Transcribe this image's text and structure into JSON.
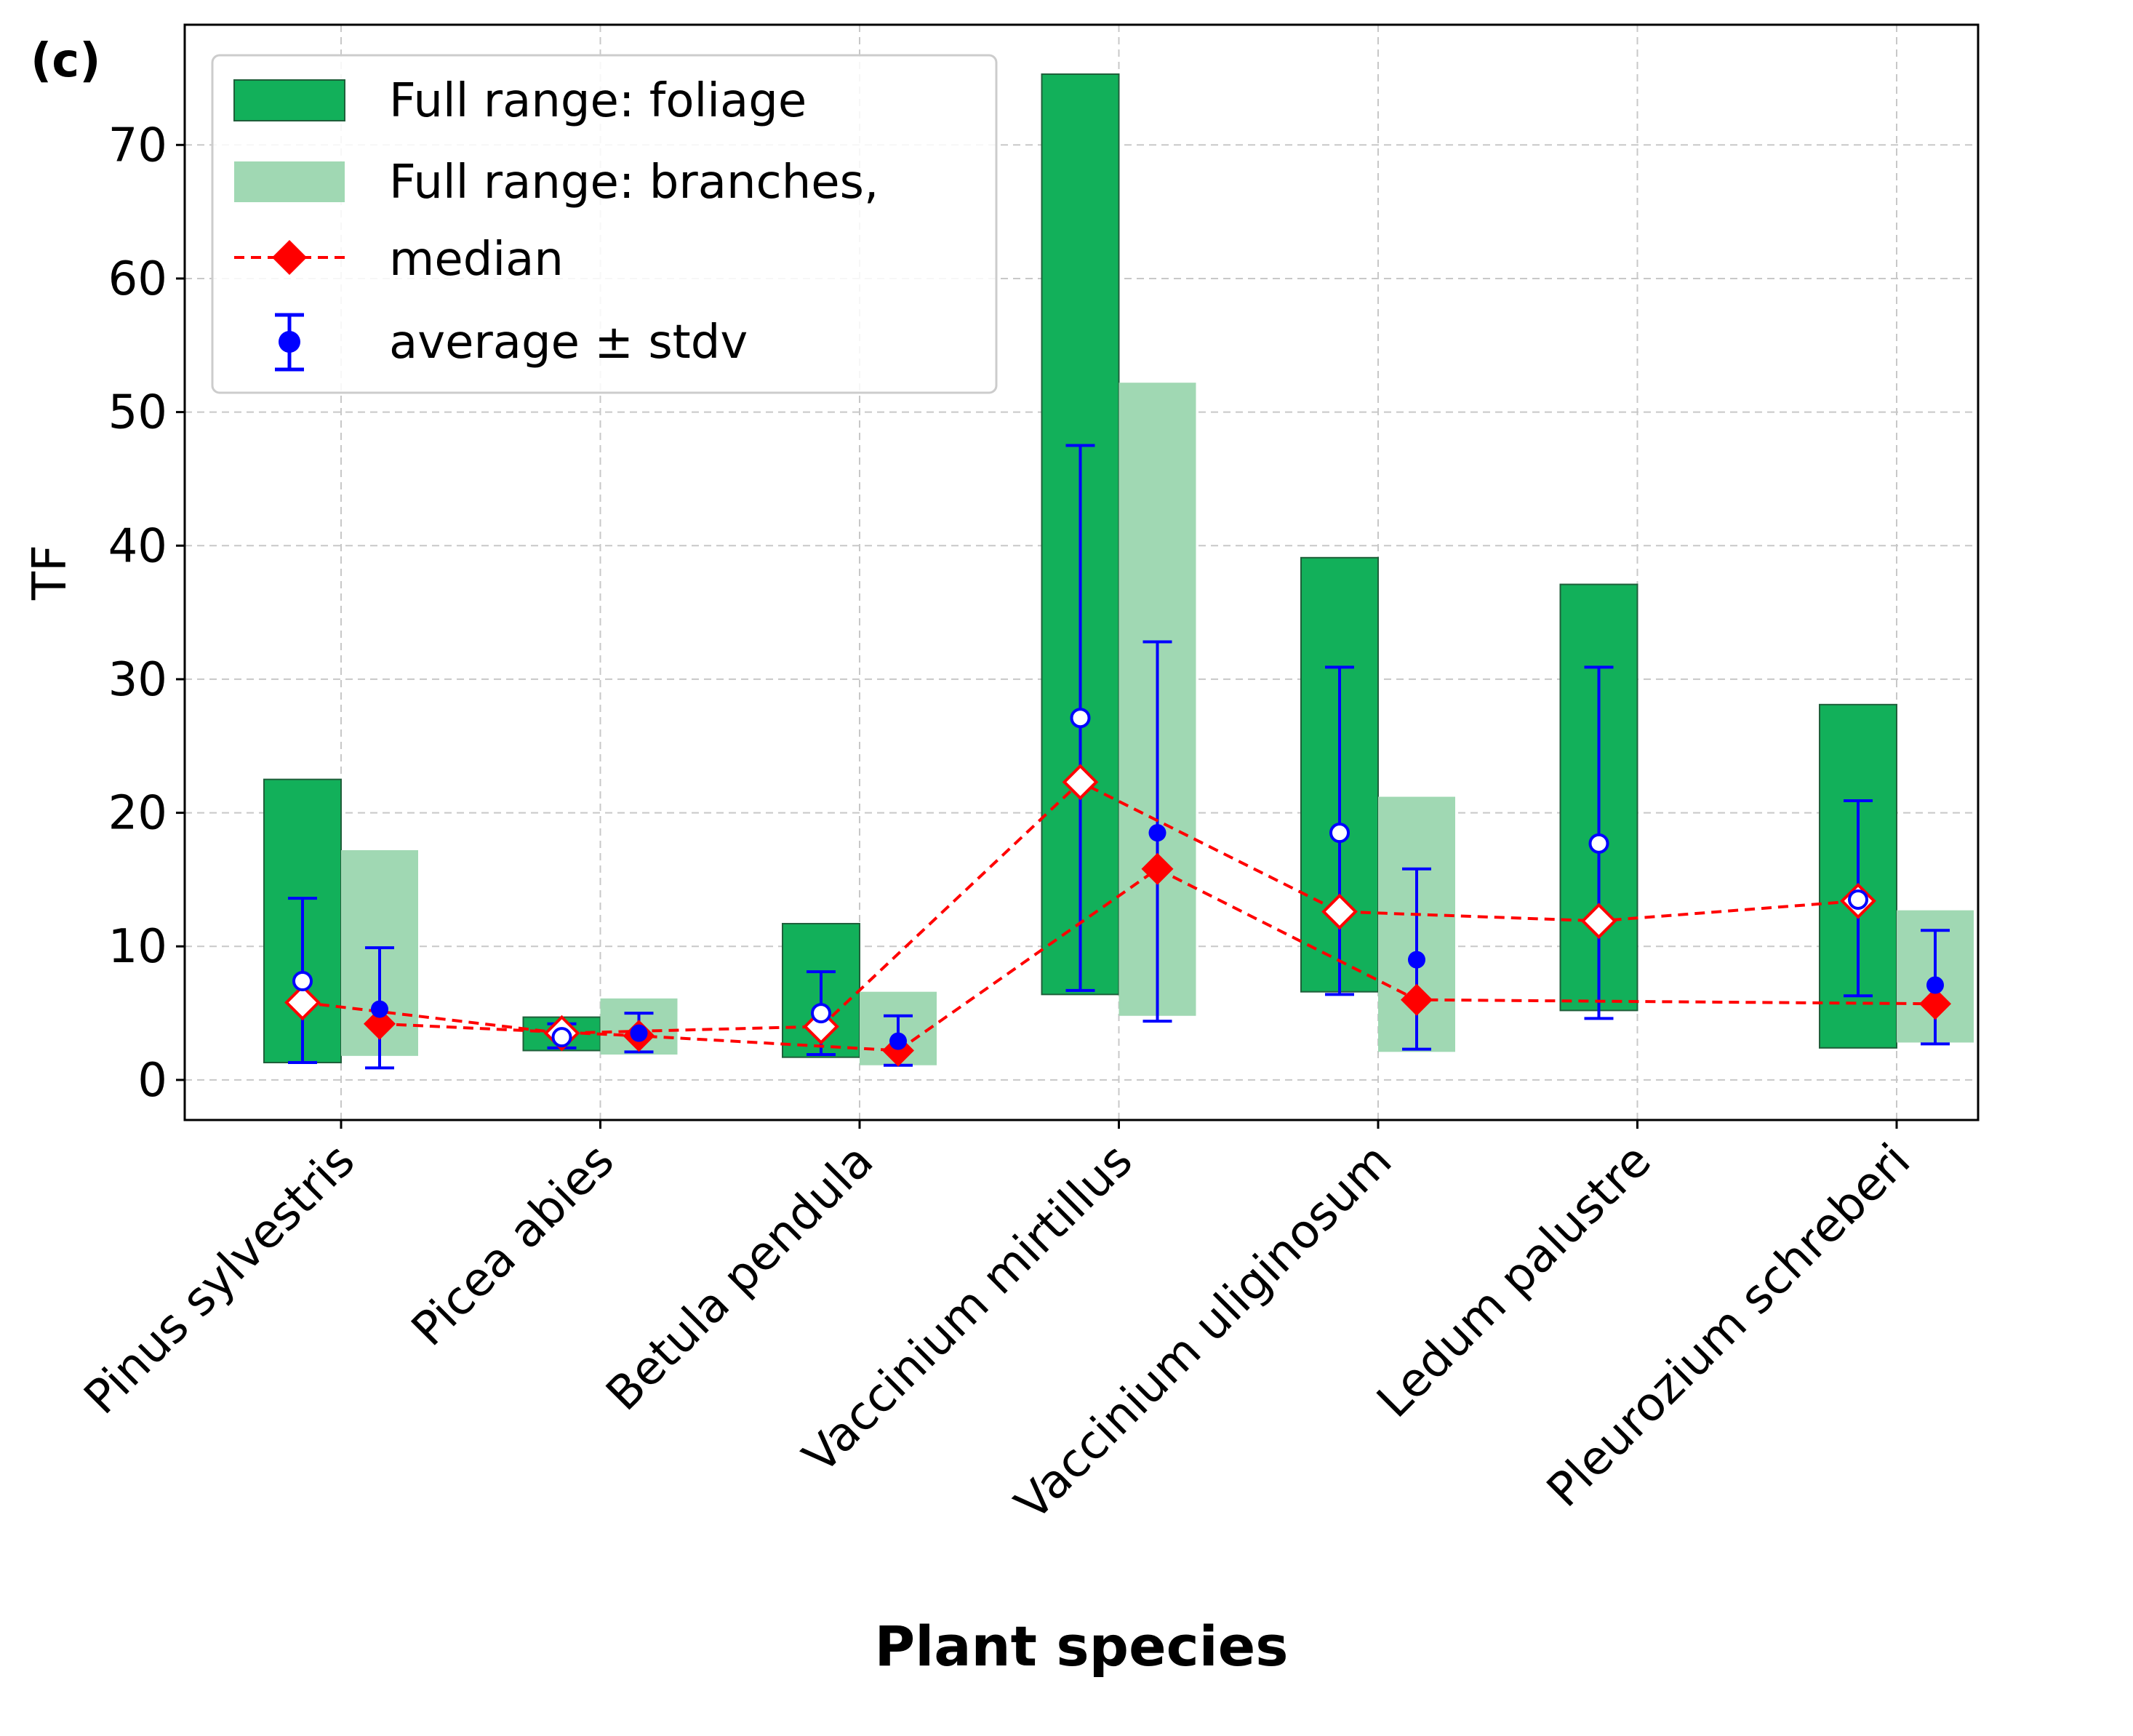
{
  "panel_label": "(c)",
  "chart_data": {
    "type": "bar",
    "xlabel": "Plant species",
    "ylabel": "TF",
    "ylim": [
      -3,
      79
    ],
    "yticks": [
      0,
      10,
      20,
      30,
      40,
      50,
      60,
      70
    ],
    "grid": true,
    "legend_position": "top-left",
    "categories": [
      "Pinus sylvestris",
      "Picea abies",
      "Betula pendula",
      "Vaccinium mirtillus",
      "Vaccinium uliginosum",
      "Ledum palustre",
      "Pleurozium schreberi"
    ],
    "legend": [
      "Full range: foliage",
      "Full range: branches,",
      "median",
      "average ± stdv"
    ],
    "colors": {
      "foliage": "#12b05a",
      "branches": "#a0d8b3",
      "median": "#ff0000",
      "average": "#0000ff",
      "grid": "#c8c8c8"
    },
    "series": [
      {
        "name": "Full range: foliage",
        "ranges": [
          [
            1.3,
            22.5
          ],
          [
            2.2,
            4.7
          ],
          [
            1.7,
            11.7
          ],
          [
            6.4,
            75.3
          ],
          [
            6.6,
            39.1
          ],
          [
            5.2,
            37.1
          ],
          [
            2.4,
            28.1
          ]
        ],
        "median": [
          5.8,
          3.5,
          4.0,
          22.3,
          12.6,
          11.9,
          13.4
        ],
        "average": [
          7.4,
          3.2,
          5.0,
          27.1,
          18.5,
          17.7,
          13.5
        ],
        "stdv_low": [
          1.3,
          2.4,
          1.9,
          6.7,
          6.4,
          4.6,
          6.3
        ],
        "stdv_high": [
          13.6,
          4.2,
          8.1,
          47.5,
          30.9,
          30.9,
          20.9
        ]
      },
      {
        "name": "Full range: branches,",
        "ranges": [
          [
            1.8,
            17.2
          ],
          [
            1.9,
            6.1
          ],
          [
            1.1,
            6.6
          ],
          [
            4.8,
            52.2
          ],
          [
            2.1,
            21.2
          ],
          null,
          [
            2.8,
            12.7
          ]
        ],
        "ranges_order_note": "",
        "median": [
          4.2,
          3.3,
          2.2,
          15.8,
          6.0,
          null,
          5.7
        ],
        "average": [
          5.3,
          3.5,
          2.9,
          18.5,
          9.0,
          null,
          7.1
        ],
        "stdv_low": [
          0.9,
          2.1,
          1.1,
          4.4,
          2.3,
          null,
          2.7
        ],
        "stdv_high": [
          9.9,
          5.0,
          4.8,
          32.8,
          15.8,
          null,
          11.2
        ]
      }
    ]
  }
}
